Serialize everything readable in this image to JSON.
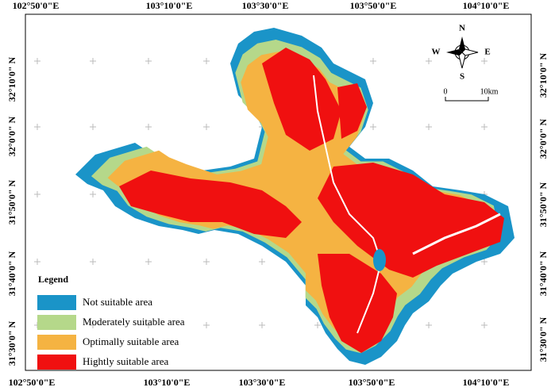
{
  "frame": {
    "top_labels": [
      "102°50'0\"E",
      "103°10'0\"E",
      "103°30'0\"E",
      "103°50'0\"E",
      "104°10'0\"E"
    ],
    "bottom_labels": [
      "102°50'0\"E",
      "103°10'0\"E",
      "103°30'0\"E",
      "103°50'0\"E",
      "104°10'0\"E"
    ],
    "left_labels": [
      "32°10'0\" N",
      "32°0'0\" N",
      "31°50'0\" N",
      "31°40'0\" N",
      "31°30'0\" N"
    ],
    "right_labels": [
      "32°10'0\" N",
      "32°0'0\" N",
      "31°50'0\" N",
      "31°40'0\" N",
      "31°30'0\" N"
    ]
  },
  "compass": {
    "n": "N",
    "s": "S",
    "e": "E",
    "w": "W"
  },
  "scale": {
    "start": "0",
    "end": "10km"
  },
  "legend": {
    "title": "Legend",
    "items": [
      {
        "label": "Not suitable area",
        "color": "#1a94c8"
      },
      {
        "label": "Moderately suitable area",
        "color": "#b5d88a"
      },
      {
        "label": "Optimally suitable area",
        "color": "#f5b342"
      },
      {
        "label": "Hightly suitable area",
        "color": "#f01010"
      }
    ]
  }
}
